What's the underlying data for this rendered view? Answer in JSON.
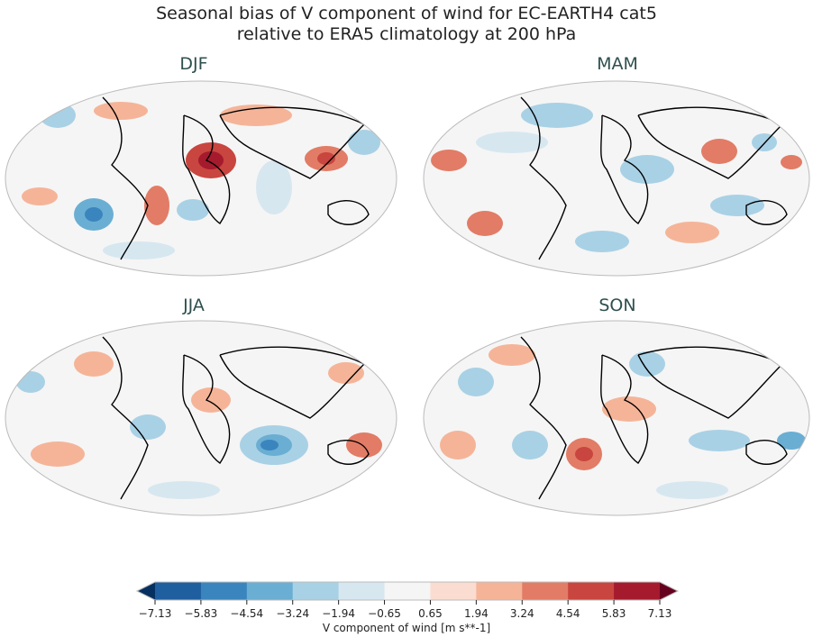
{
  "title": {
    "line1": "Seasonal bias of V component of wind for EC-EARTH4 cat5",
    "line2": "relative to ERA5 climatology at 200 hPa"
  },
  "panels": [
    {
      "label": "DJF"
    },
    {
      "label": "MAM"
    },
    {
      "label": "JJA"
    },
    {
      "label": "SON"
    }
  ],
  "colorbar": {
    "label": "V component of wind [m s**-1]",
    "ticks": [
      "−7.13",
      "−5.83",
      "−4.54",
      "−3.24",
      "−1.94",
      "−0.65",
      "0.65",
      "1.94",
      "3.24",
      "4.54",
      "5.83",
      "7.13"
    ],
    "colors": [
      "#1f5fa0",
      "#3a85be",
      "#6aaed3",
      "#a9d1e5",
      "#d7e7f0",
      "#f5f5f5",
      "#fbdcd0",
      "#f5b498",
      "#e27c66",
      "#c9453f",
      "#a51a2d"
    ],
    "under_color": "#053061",
    "over_color": "#67001f"
  }
}
